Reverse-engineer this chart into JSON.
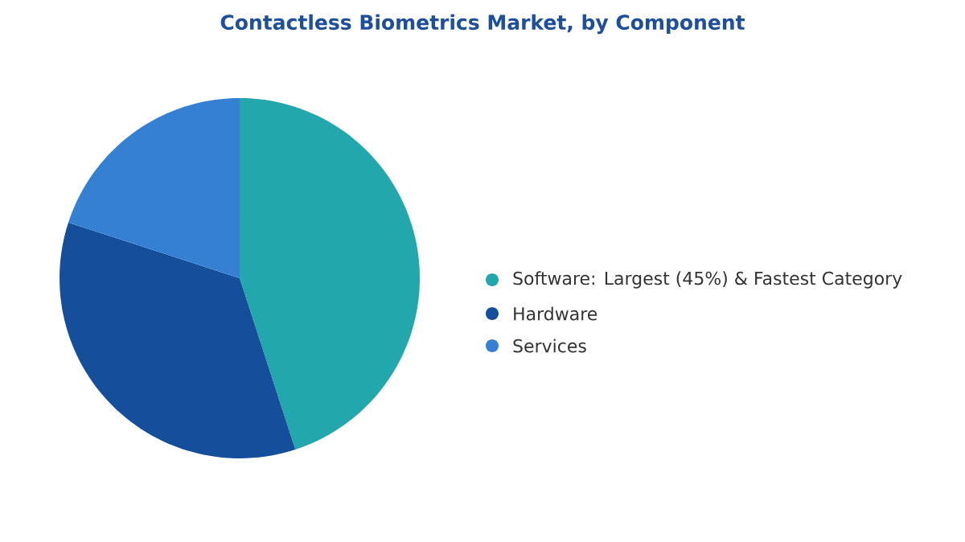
{
  "chart_data": {
    "type": "pie",
    "title": "Contactless Biometrics Market, by Component",
    "categories": [
      "Software: Largest (45%) & Fastest Category",
      "Hardware",
      "Services"
    ],
    "values": [
      45,
      35,
      20
    ],
    "colors": [
      "#22a7ad",
      "#154f9c",
      "#3580d2"
    ],
    "legend": "right"
  }
}
